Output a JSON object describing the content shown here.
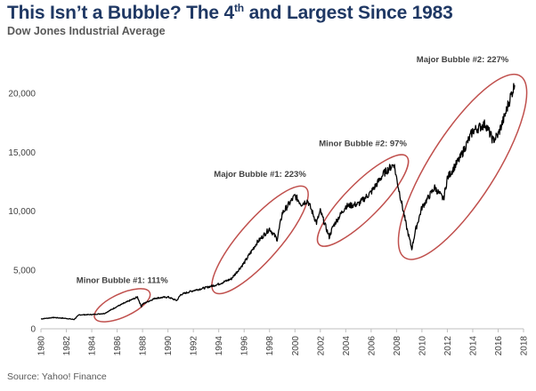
{
  "header": {
    "title_main": "This Isn’t a Bubble? The 4",
    "title_sup": "th",
    "title_tail": " and Largest Since 1983",
    "subtitle": "Dow Jones Industrial Average"
  },
  "footer": {
    "source": "Source: Yahoo! Finance"
  },
  "colors": {
    "line": "#000000",
    "ellipse": "#c0504d",
    "title": "#1f3864",
    "text": "#404040"
  },
  "chart_data": {
    "type": "line",
    "title": "This Isn’t a Bubble? The 4th and Largest Since 1983",
    "subtitle": "Dow Jones Industrial Average",
    "xlabel": "",
    "ylabel": "",
    "xlim": [
      1980,
      2018
    ],
    "ylim": [
      0,
      20000
    ],
    "grid": false,
    "legend": "none",
    "x_ticks": [
      "1980",
      "1982",
      "1984",
      "1986",
      "1988",
      "1990",
      "1992",
      "1994",
      "1996",
      "1998",
      "2000",
      "2002",
      "2004",
      "2006",
      "2008",
      "2010",
      "2012",
      "2014",
      "2016",
      "2018"
    ],
    "y_ticks": [
      {
        "value": 0,
        "label": "0"
      },
      {
        "value": 5000,
        "label": "5,000"
      },
      {
        "value": 10000,
        "label": "10,000"
      },
      {
        "value": 15000,
        "label": "15,000"
      },
      {
        "value": 20000,
        "label": "20,000"
      }
    ],
    "series": [
      {
        "x": [
          1980,
          1981,
          1982,
          1982.6,
          1983,
          1984,
          1985,
          1986,
          1987,
          1987.6,
          1987.9,
          1988,
          1989,
          1990,
          1990.7,
          1991,
          1992,
          1993,
          1994,
          1995,
          1996,
          1997,
          1998,
          1998.6,
          1999,
          2000,
          2000.5,
          2001,
          2001.7,
          2002,
          2002.7,
          2003,
          2004,
          2005,
          2006,
          2007,
          2007.8,
          2008,
          2008.8,
          2009.2,
          2009.5,
          2010,
          2011,
          2011.7,
          2012,
          2013,
          2014,
          2015,
          2015.6,
          2016,
          2016.5,
          2017,
          2017.3
        ],
        "y": [
          840,
          960,
          880,
          790,
          1180,
          1210,
          1300,
          1900,
          2400,
          2700,
          1900,
          2100,
          2600,
          2700,
          2400,
          2900,
          3250,
          3500,
          3800,
          4250,
          5600,
          7300,
          8500,
          7600,
          9800,
          11300,
          10600,
          10900,
          9000,
          10000,
          7800,
          8700,
          10400,
          10600,
          11600,
          13200,
          14000,
          12800,
          8600,
          6800,
          8400,
          10300,
          12000,
          11000,
          12800,
          14500,
          16800,
          17400,
          16000,
          16500,
          18000,
          19800,
          20700
        ]
      }
    ],
    "annotations": [
      {
        "text": "Minor Bubble #1: 111%",
        "x_from": 1985,
        "x_to": 1987.8
      },
      {
        "text": "Major Bubble #1: 223%",
        "x_from": 1994.2,
        "x_to": 2000.3
      },
      {
        "text": "Minor Bubble #2: 97%",
        "x_from": 2002.5,
        "x_to": 2008.2
      },
      {
        "text": "Major Bubble #2: 227%",
        "x_from": 2009.1,
        "x_to": 2017.3
      }
    ]
  }
}
